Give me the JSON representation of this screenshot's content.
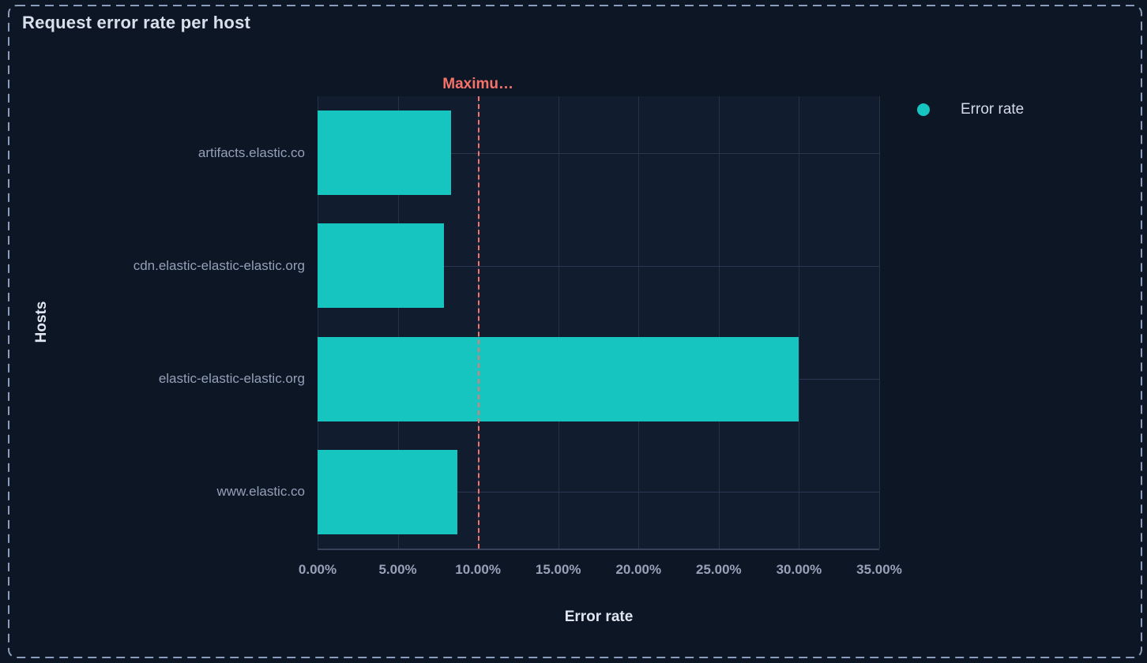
{
  "panel": {
    "title": "Request error rate per host",
    "background_color": "#0D1624",
    "border_color": "#8B9DBB",
    "border_style": "dashed"
  },
  "chart_data": {
    "type": "bar",
    "orientation": "horizontal",
    "title": "Request error rate per host",
    "xlabel": "Error rate",
    "ylabel": "Hosts",
    "categories": [
      "artifacts.elastic.co",
      "cdn.elastic-elastic-elastic.org",
      "elastic-elastic-elastic.org",
      "www.elastic.co"
    ],
    "series": [
      {
        "name": "Error rate",
        "color": "#16C5C0",
        "values_percent": [
          8.3,
          7.9,
          30.0,
          8.7
        ]
      }
    ],
    "x_ticks": [
      "0.00%",
      "5.00%",
      "10.00%",
      "15.00%",
      "20.00%",
      "25.00%",
      "30.00%",
      "35.00%"
    ],
    "xlim_percent": [
      0,
      35
    ],
    "grid": true,
    "legend": {
      "position": "right",
      "items": [
        {
          "label": "Error rate",
          "color": "#16C5C0"
        }
      ]
    },
    "annotation": {
      "label": "Maximu…",
      "value_percent": 10.0,
      "line_style": "dashed",
      "color": "#F6726A"
    }
  }
}
